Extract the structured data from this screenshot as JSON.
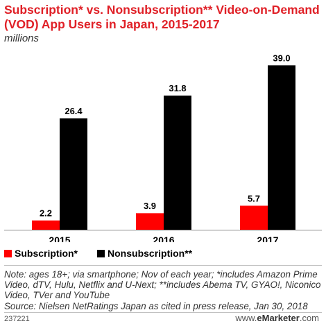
{
  "title": "Subscription* vs. Nonsubscription** Video-on-Demand (VOD) App Users in Japan, 2015-2017",
  "subtitle": "millions",
  "colors": {
    "title": "#e02027",
    "subscription": "#ff0000",
    "nonsubscription": "#000000"
  },
  "chart_data": {
    "type": "bar",
    "categories": [
      "2015",
      "2016",
      "2017"
    ],
    "series": [
      {
        "name": "Subscription*",
        "values": [
          2.2,
          3.9,
          5.7
        ]
      },
      {
        "name": "Nonsubscription**",
        "values": [
          26.4,
          31.8,
          39.0
        ]
      }
    ],
    "value_labels": [
      [
        "2.2",
        "3.9",
        "5.7"
      ],
      [
        "26.4",
        "31.8",
        "39.0"
      ]
    ],
    "ylim": [
      0,
      43
    ],
    "legend_position": "bottom-left"
  },
  "note": "Note: ages 18+; via smartphone; Nov of each year; *includes Amazon Prime Video, dTV, Hulu, Netflix and U-Next; **includes Abema TV, GYAO!, Niconico Video, TVer and YouTube",
  "source": "Source: Nielsen NetRatings Japan as cited in press release, Jan 30, 2018",
  "footer": {
    "id": "237221",
    "brand_prefix": "www.",
    "brand_name": "eMarketer",
    "brand_suffix": ".com"
  }
}
